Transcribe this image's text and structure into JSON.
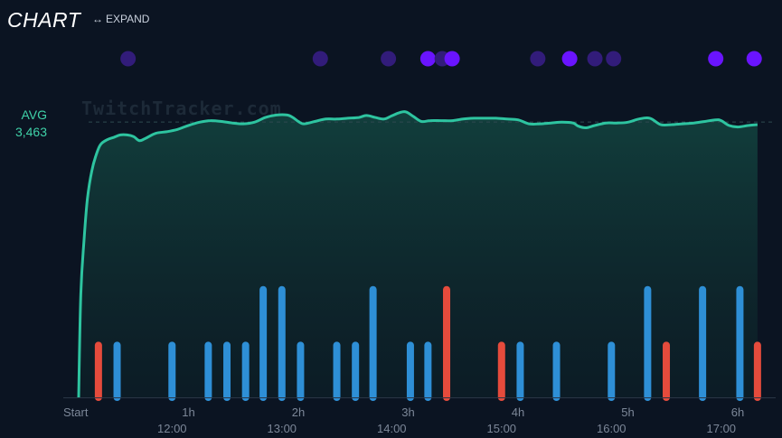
{
  "header": {
    "title": "CHART",
    "expand_label": "EXPAND",
    "expand_icon": "left-right-arrow-icon"
  },
  "watermark": "TwitchTracker.com",
  "colors": {
    "background": "#0b1422",
    "line": "#2ec4a0",
    "event_blue": "#2e8fd6",
    "event_red": "#e54b3c",
    "dot_dim": "#321c7a",
    "dot_bright": "#6a14ff",
    "avg_label": "#3fd1a8",
    "axis_text": "#7c8798"
  },
  "chart_data": {
    "type": "line",
    "avg_label": "AVG",
    "avg_value": 3463,
    "avg_value_text": "3,463",
    "x_unit": "hours since start",
    "xlim": [
      -0.12,
      6.4
    ],
    "elapsed_ticks": [
      {
        "x": 0,
        "label": "Start"
      },
      {
        "x": 1,
        "label": "1h"
      },
      {
        "x": 2,
        "label": "2h"
      },
      {
        "x": 3,
        "label": "3h"
      },
      {
        "x": 4,
        "label": "4h"
      },
      {
        "x": 5,
        "label": "5h"
      },
      {
        "x": 6,
        "label": "6h"
      }
    ],
    "clock_ticks": [
      {
        "x": 0.85,
        "label": "12:00"
      },
      {
        "x": 1.85,
        "label": "13:00"
      },
      {
        "x": 2.85,
        "label": "14:00"
      },
      {
        "x": 3.85,
        "label": "15:00"
      },
      {
        "x": 4.85,
        "label": "16:00"
      },
      {
        "x": 5.85,
        "label": "17:00"
      }
    ],
    "ylim": [
      0,
      3850
    ],
    "viewers": [
      [
        0,
        0
      ],
      [
        0.02,
        1300
      ],
      [
        0.05,
        2000
      ],
      [
        0.08,
        2500
      ],
      [
        0.12,
        2850
      ],
      [
        0.16,
        3050
      ],
      [
        0.2,
        3180
      ],
      [
        0.26,
        3240
      ],
      [
        0.32,
        3270
      ],
      [
        0.38,
        3300
      ],
      [
        0.44,
        3300
      ],
      [
        0.5,
        3280
      ],
      [
        0.55,
        3230
      ],
      [
        0.6,
        3250
      ],
      [
        0.7,
        3320
      ],
      [
        0.8,
        3340
      ],
      [
        0.9,
        3370
      ],
      [
        1.0,
        3420
      ],
      [
        1.1,
        3460
      ],
      [
        1.2,
        3480
      ],
      [
        1.3,
        3470
      ],
      [
        1.4,
        3450
      ],
      [
        1.5,
        3440
      ],
      [
        1.6,
        3460
      ],
      [
        1.7,
        3520
      ],
      [
        1.8,
        3550
      ],
      [
        1.9,
        3550
      ],
      [
        1.95,
        3520
      ],
      [
        2.0,
        3470
      ],
      [
        2.05,
        3440
      ],
      [
        2.15,
        3470
      ],
      [
        2.25,
        3500
      ],
      [
        2.35,
        3500
      ],
      [
        2.45,
        3510
      ],
      [
        2.55,
        3520
      ],
      [
        2.62,
        3545
      ],
      [
        2.7,
        3520
      ],
      [
        2.78,
        3500
      ],
      [
        2.85,
        3540
      ],
      [
        2.92,
        3580
      ],
      [
        2.98,
        3590
      ],
      [
        3.05,
        3530
      ],
      [
        3.12,
        3470
      ],
      [
        3.2,
        3480
      ],
      [
        3.3,
        3480
      ],
      [
        3.4,
        3480
      ],
      [
        3.5,
        3500
      ],
      [
        3.6,
        3510
      ],
      [
        3.7,
        3510
      ],
      [
        3.8,
        3510
      ],
      [
        3.9,
        3500
      ],
      [
        4.0,
        3490
      ],
      [
        4.1,
        3440
      ],
      [
        4.2,
        3440
      ],
      [
        4.3,
        3450
      ],
      [
        4.4,
        3460
      ],
      [
        4.5,
        3450
      ],
      [
        4.55,
        3410
      ],
      [
        4.62,
        3390
      ],
      [
        4.7,
        3420
      ],
      [
        4.8,
        3450
      ],
      [
        4.9,
        3450
      ],
      [
        5.0,
        3460
      ],
      [
        5.1,
        3500
      ],
      [
        5.2,
        3510
      ],
      [
        5.3,
        3430
      ],
      [
        5.4,
        3430
      ],
      [
        5.5,
        3440
      ],
      [
        5.6,
        3450
      ],
      [
        5.7,
        3470
      ],
      [
        5.8,
        3490
      ],
      [
        5.85,
        3480
      ],
      [
        5.92,
        3420
      ],
      [
        6.0,
        3400
      ],
      [
        6.1,
        3420
      ],
      [
        6.18,
        3430
      ]
    ],
    "event_bars": [
      {
        "x": 0.18,
        "level": 1,
        "color": "red"
      },
      {
        "x": 0.35,
        "level": 1,
        "color": "blue"
      },
      {
        "x": 0.85,
        "level": 1,
        "color": "blue"
      },
      {
        "x": 1.18,
        "level": 1,
        "color": "blue"
      },
      {
        "x": 1.35,
        "level": 1,
        "color": "blue"
      },
      {
        "x": 1.52,
        "level": 1,
        "color": "blue"
      },
      {
        "x": 1.68,
        "level": 2,
        "color": "blue"
      },
      {
        "x": 1.85,
        "level": 2,
        "color": "blue"
      },
      {
        "x": 2.02,
        "level": 1,
        "color": "blue"
      },
      {
        "x": 2.35,
        "level": 1,
        "color": "blue"
      },
      {
        "x": 2.52,
        "level": 1,
        "color": "blue"
      },
      {
        "x": 2.68,
        "level": 2,
        "color": "blue"
      },
      {
        "x": 3.02,
        "level": 1,
        "color": "blue"
      },
      {
        "x": 3.18,
        "level": 1,
        "color": "blue"
      },
      {
        "x": 3.35,
        "level": 2,
        "color": "red"
      },
      {
        "x": 3.85,
        "level": 1,
        "color": "red"
      },
      {
        "x": 4.02,
        "level": 1,
        "color": "blue"
      },
      {
        "x": 4.35,
        "level": 1,
        "color": "blue"
      },
      {
        "x": 4.85,
        "level": 1,
        "color": "blue"
      },
      {
        "x": 5.18,
        "level": 2,
        "color": "blue"
      },
      {
        "x": 5.35,
        "level": 1,
        "color": "red"
      },
      {
        "x": 5.68,
        "level": 2,
        "color": "blue"
      },
      {
        "x": 6.02,
        "level": 2,
        "color": "blue"
      },
      {
        "x": 6.18,
        "level": 1,
        "color": "red"
      }
    ],
    "event_levels": [
      0,
      700,
      1400
    ],
    "marker_dots": [
      {
        "x": 0.45,
        "style": "dim"
      },
      {
        "x": 2.2,
        "style": "dim"
      },
      {
        "x": 2.82,
        "style": "dim"
      },
      {
        "x": 3.18,
        "style": "bright"
      },
      {
        "x": 3.31,
        "style": "dim"
      },
      {
        "x": 3.4,
        "style": "bright"
      },
      {
        "x": 4.18,
        "style": "dim"
      },
      {
        "x": 4.47,
        "style": "bright"
      },
      {
        "x": 4.7,
        "style": "dim"
      },
      {
        "x": 4.87,
        "style": "dim"
      },
      {
        "x": 5.8,
        "style": "bright"
      },
      {
        "x": 6.15,
        "style": "bright"
      }
    ]
  }
}
